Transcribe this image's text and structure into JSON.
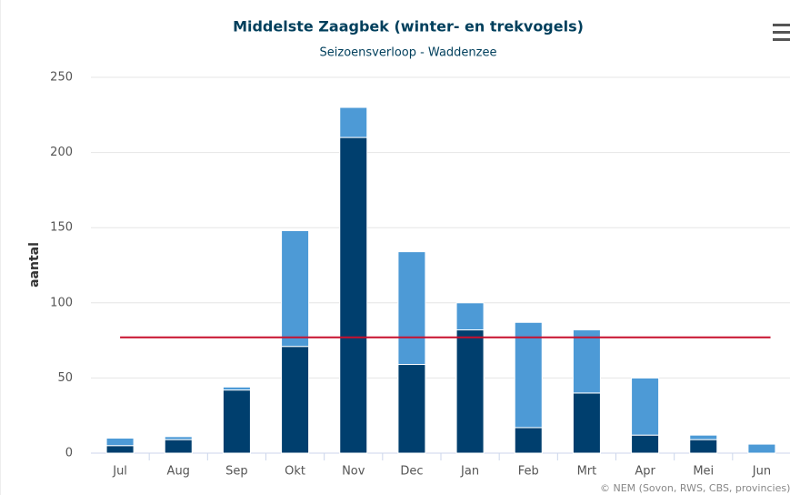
{
  "chart_data": {
    "type": "stacked_bar",
    "title": "Middelste Zaagbek (winter- en trekvogels)",
    "subtitle": "Seizoensverloop - Waddenzee",
    "y_label": "aantal",
    "credits": "© NEM (Sovon, RWS, CBS, provincies)",
    "categories": [
      "Jul",
      "Aug",
      "Sep",
      "Okt",
      "Nov",
      "Dec",
      "Jan",
      "Feb",
      "Mrt",
      "Apr",
      "Mei",
      "Jun"
    ],
    "series": [
      {
        "color": "#003f6e",
        "values": [
          5,
          9,
          42,
          71,
          210,
          59,
          82,
          17,
          40,
          12,
          9,
          0
        ]
      },
      {
        "color": "#4d9ad6",
        "values": [
          5,
          2,
          2,
          77,
          20,
          75,
          18,
          70,
          42,
          38,
          3,
          6
        ]
      }
    ],
    "reference_line": {
      "value": 77,
      "color": "#c8102e"
    },
    "ylim": [
      0,
      250
    ],
    "yticks": [
      0,
      50,
      100,
      150,
      200,
      250
    ],
    "grid": true
  }
}
